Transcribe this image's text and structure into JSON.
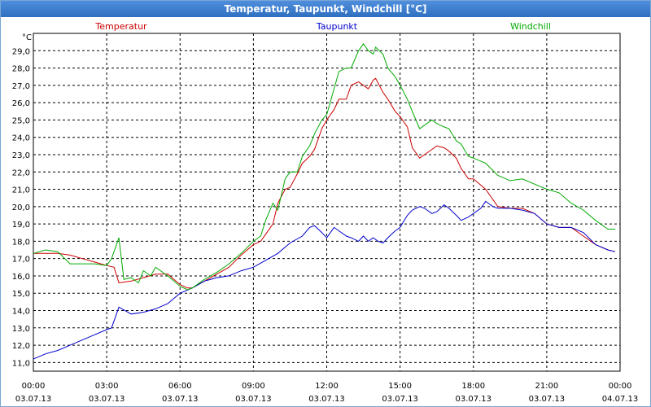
{
  "window": {
    "title": "Temperatur, Taupunkt, Windchill [°C]"
  },
  "colors": {
    "temperatur": "#cc0000",
    "taupunkt": "#0000cc",
    "windchill": "#00aa00",
    "grid": "#000000",
    "titlebar": "#3a7bd5"
  },
  "chart_data": {
    "type": "line",
    "title": "Temperatur, Taupunkt, Windchill [°C]",
    "ylabel": "°C",
    "xlabel": "",
    "grid": true,
    "legend_position": "top",
    "ylim": [
      10.5,
      30.0
    ],
    "yticks": [
      "11,0",
      "12,0",
      "13,0",
      "14,0",
      "15,0",
      "16,0",
      "17,0",
      "18,0",
      "19,0",
      "20,0",
      "21,0",
      "22,0",
      "23,0",
      "24,0",
      "25,0",
      "26,0",
      "27,0",
      "28,0",
      "29,0"
    ],
    "xlim": [
      0,
      24
    ],
    "xticks": [
      {
        "time": "00:00",
        "date": "03.07.13"
      },
      {
        "time": "03:00",
        "date": "03.07.13"
      },
      {
        "time": "06:00",
        "date": "03.07.13"
      },
      {
        "time": "09:00",
        "date": "03.07.13"
      },
      {
        "time": "12:00",
        "date": "03.07.13"
      },
      {
        "time": "15:00",
        "date": "03.07.13"
      },
      {
        "time": "18:00",
        "date": "03.07.13"
      },
      {
        "time": "21:00",
        "date": "03.07.13"
      },
      {
        "time": "00:00",
        "date": "04.07.13"
      }
    ],
    "series": [
      {
        "name": "Temperatur",
        "x": [
          0,
          0.5,
          1,
          1.5,
          2,
          2.5,
          3,
          3.3,
          3.5,
          4,
          4.5,
          5,
          5.5,
          6,
          6.3,
          6.5,
          7,
          7.5,
          8,
          8.5,
          9,
          9.3,
          9.5,
          9.8,
          10,
          10.3,
          10.5,
          10.8,
          11,
          11.3,
          11.5,
          11.8,
          12,
          12.3,
          12.5,
          12.8,
          13,
          13.3,
          13.5,
          13.7,
          13.9,
          14,
          14.3,
          14.5,
          14.8,
          15,
          15.3,
          15.5,
          15.8,
          16,
          16.3,
          16.5,
          16.8,
          17,
          17.3,
          17.5,
          17.8,
          18,
          18.5,
          19,
          19.5,
          20,
          20.5,
          21,
          21.5,
          22,
          22.5,
          23,
          23.5,
          23.8
        ],
        "y": [
          17.3,
          17.3,
          17.3,
          17.2,
          17.0,
          16.8,
          16.6,
          16.5,
          15.6,
          15.7,
          15.9,
          16.1,
          16.1,
          15.5,
          15.3,
          15.3,
          15.7,
          16.1,
          16.5,
          17.2,
          17.8,
          18.0,
          18.4,
          19.0,
          20.2,
          21.0,
          21.1,
          21.9,
          22.5,
          22.9,
          23.3,
          24.5,
          25.0,
          25.6,
          26.2,
          26.2,
          27.0,
          27.2,
          27.0,
          26.8,
          27.3,
          27.4,
          26.6,
          26.2,
          25.5,
          25.2,
          24.6,
          23.4,
          22.8,
          23.0,
          23.3,
          23.5,
          23.4,
          23.2,
          22.8,
          22.2,
          21.6,
          21.6,
          21.0,
          20.0,
          19.9,
          19.9,
          19.6,
          19.0,
          18.8,
          18.8,
          18.3,
          17.8,
          17.5,
          17.4
        ]
      },
      {
        "name": "Taupunkt",
        "x": [
          0,
          0.5,
          1,
          1.5,
          2,
          2.5,
          3,
          3.2,
          3.5,
          4,
          4.5,
          5,
          5.5,
          6,
          6.5,
          7,
          7.5,
          8,
          8.5,
          9,
          9.5,
          10,
          10.5,
          11,
          11.3,
          11.5,
          11.8,
          12,
          12.3,
          12.5,
          12.8,
          13,
          13.3,
          13.5,
          13.7,
          13.9,
          14.1,
          14.3,
          14.5,
          14.8,
          15,
          15.3,
          15.5,
          15.8,
          16,
          16.3,
          16.5,
          16.8,
          17,
          17.3,
          17.5,
          17.8,
          18,
          18.3,
          18.5,
          18.8,
          19,
          19.5,
          20,
          20.5,
          21,
          21.5,
          22,
          22.5,
          23,
          23.5,
          23.8
        ],
        "y": [
          11.2,
          11.5,
          11.7,
          12.0,
          12.3,
          12.6,
          12.9,
          13.0,
          14.2,
          13.8,
          13.9,
          14.1,
          14.4,
          15.0,
          15.3,
          15.7,
          15.9,
          16.0,
          16.3,
          16.5,
          16.9,
          17.3,
          17.9,
          18.3,
          18.8,
          18.9,
          18.5,
          18.2,
          18.8,
          18.6,
          18.3,
          18.2,
          18.0,
          18.3,
          18.0,
          18.2,
          18.0,
          17.9,
          18.2,
          18.6,
          18.8,
          19.5,
          19.8,
          20.0,
          19.9,
          19.6,
          19.7,
          20.1,
          19.9,
          19.5,
          19.2,
          19.4,
          19.6,
          19.9,
          20.3,
          20.0,
          19.9,
          19.9,
          19.8,
          19.6,
          19.0,
          18.8,
          18.8,
          18.5,
          17.8,
          17.5,
          17.4
        ]
      },
      {
        "name": "Windchill",
        "x": [
          0,
          0.5,
          1,
          1.5,
          2,
          2.5,
          3,
          3.2,
          3.5,
          3.7,
          4,
          4.3,
          4.5,
          4.8,
          5,
          5.5,
          6,
          6.3,
          6.5,
          7,
          7.5,
          8,
          8.5,
          9,
          9.3,
          9.5,
          9.8,
          10,
          10.3,
          10.5,
          10.8,
          11,
          11.3,
          11.5,
          11.8,
          12,
          12.3,
          12.5,
          12.8,
          13,
          13.3,
          13.5,
          13.7,
          13.9,
          14,
          14.3,
          14.5,
          14.8,
          15,
          15.3,
          15.5,
          15.8,
          16,
          16.3,
          16.5,
          16.8,
          17,
          17.3,
          17.5,
          17.8,
          18,
          18.5,
          19,
          19.5,
          20,
          20.5,
          21,
          21.5,
          22,
          22.5,
          23,
          23.5,
          23.8
        ],
        "y": [
          17.3,
          17.5,
          17.4,
          16.7,
          16.7,
          16.7,
          16.6,
          17.0,
          18.2,
          15.8,
          15.9,
          15.6,
          16.3,
          16.0,
          16.5,
          16.0,
          15.4,
          15.2,
          15.3,
          15.8,
          16.2,
          16.7,
          17.3,
          18.0,
          18.3,
          19.2,
          20.2,
          19.8,
          21.6,
          22.0,
          22.0,
          22.9,
          23.5,
          24.2,
          25.0,
          25.3,
          26.8,
          27.8,
          28.0,
          28.0,
          29.0,
          29.4,
          29.0,
          28.8,
          29.2,
          28.8,
          28.0,
          27.5,
          27.0,
          26.2,
          25.5,
          24.5,
          24.7,
          25.0,
          24.8,
          24.6,
          24.5,
          23.8,
          23.6,
          22.9,
          22.8,
          22.5,
          21.8,
          21.5,
          21.6,
          21.3,
          21.0,
          20.8,
          20.2,
          19.8,
          19.2,
          18.7,
          18.7
        ]
      }
    ]
  }
}
